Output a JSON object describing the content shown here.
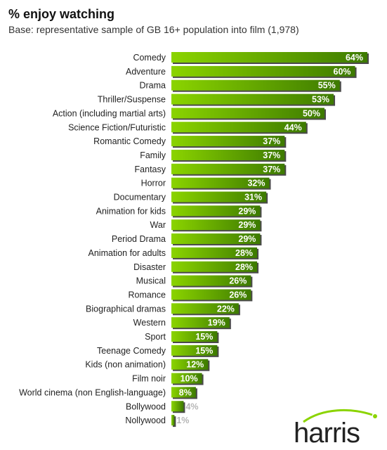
{
  "header": {
    "title": "% enjoy watching",
    "subtitle": "Base: representative sample of GB 16+ population into film (1,978)"
  },
  "logo": {
    "text": "harris"
  },
  "colors": {
    "bar_start": "#8bd400",
    "bar_end": "#3d7a00",
    "bar_shadow": "#4a4a4a"
  },
  "chart_data": {
    "type": "bar",
    "orientation": "horizontal",
    "title": "% enjoy watching",
    "subtitle": "Base: representative sample of GB 16+ population into film (1,978)",
    "xlim": [
      0,
      70
    ],
    "grid": false,
    "categories": [
      "Comedy",
      "Adventure",
      "Drama",
      "Thriller/Suspense",
      "Action (including martial arts)",
      "Science Fiction/Futuristic",
      "Romantic Comedy",
      "Family",
      "Fantasy",
      "Horror",
      "Documentary",
      "Animation for kids",
      "War",
      "Period Drama",
      "Animation for adults",
      "Disaster",
      "Musical",
      "Romance",
      "Biographical dramas",
      "Western",
      "Sport",
      "Teenage Comedy",
      "Kids (non animation)",
      "Film noir",
      "World cinema (non English-language)",
      "Bollywood",
      "Nollywood"
    ],
    "values": [
      64,
      60,
      55,
      53,
      50,
      44,
      37,
      37,
      37,
      32,
      31,
      29,
      29,
      29,
      28,
      28,
      26,
      26,
      22,
      19,
      15,
      15,
      12,
      10,
      8,
      4,
      1
    ],
    "value_labels": [
      "64%",
      "60%",
      "55%",
      "53%",
      "50%",
      "44%",
      "37%",
      "37%",
      "37%",
      "32%",
      "31%",
      "29%",
      "29%",
      "29%",
      "28%",
      "28%",
      "26%",
      "26%",
      "22%",
      "19%",
      "15%",
      "15%",
      "12%",
      "10%",
      "8%",
      "4%",
      "1%"
    ]
  }
}
